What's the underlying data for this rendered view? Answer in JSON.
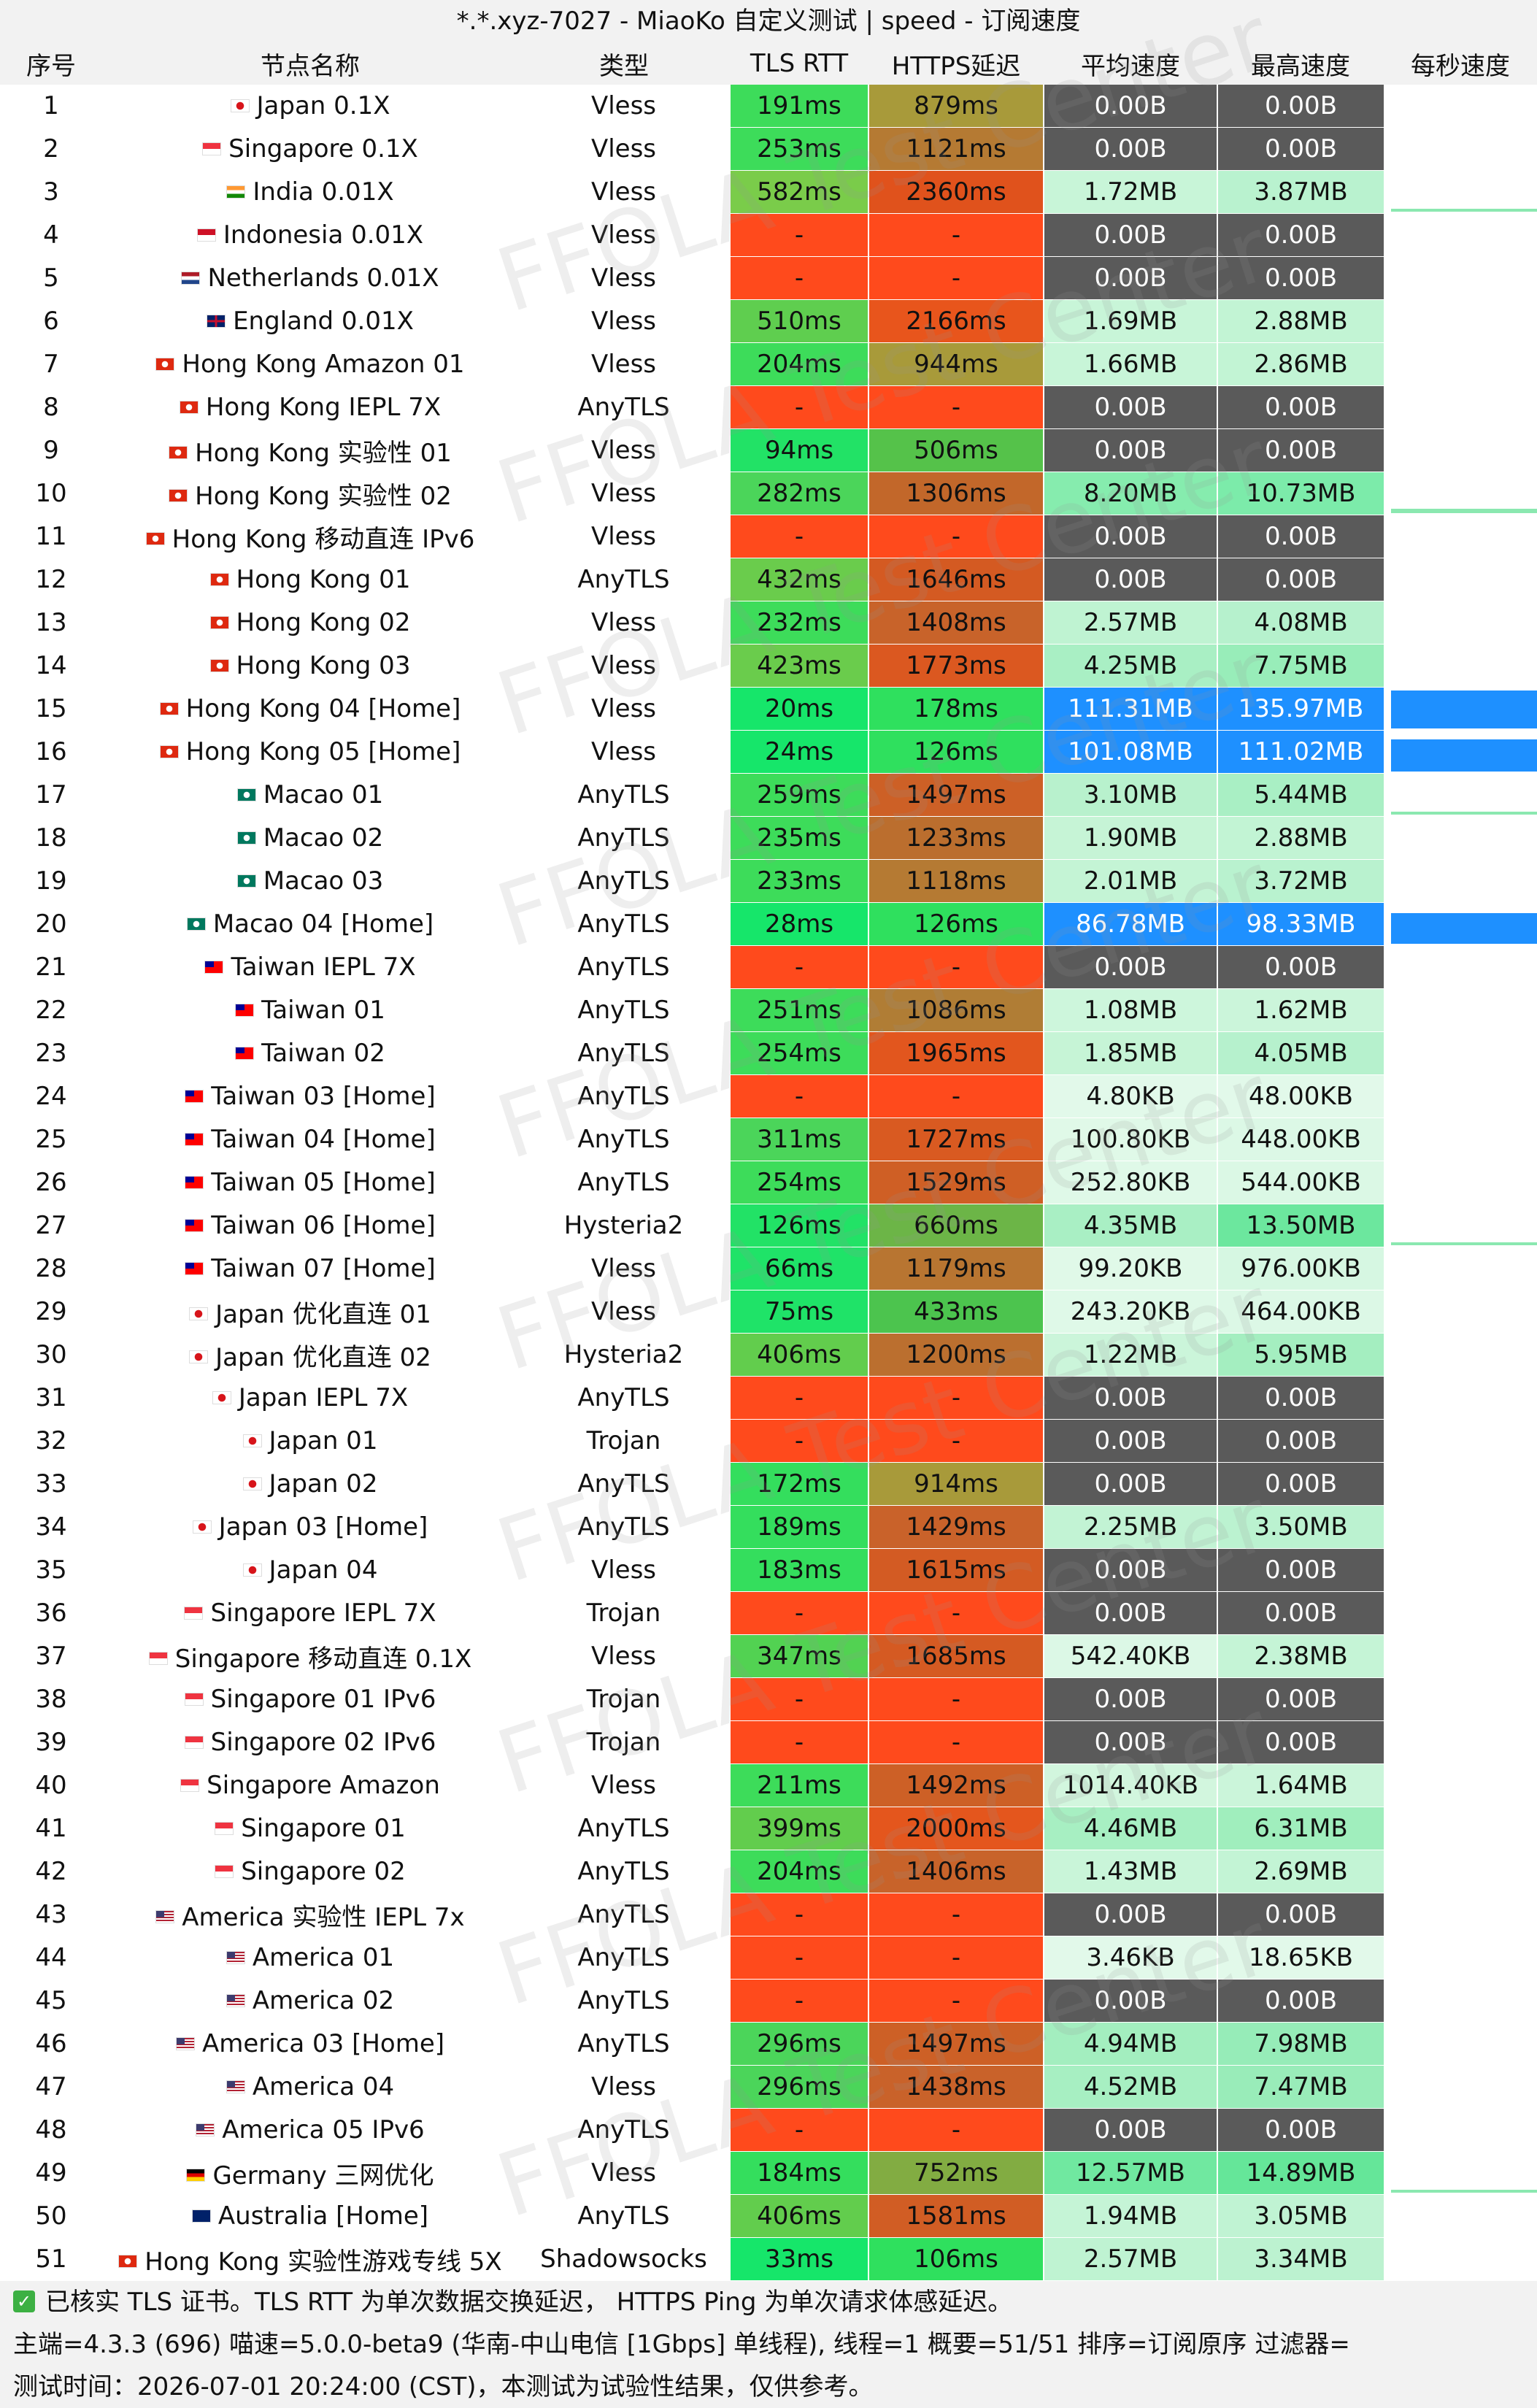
{
  "title": "*.*.xyz-7027 - MiaoKo 自定义测试 | speed - 订阅速度",
  "headers": [
    "序号",
    "节点名称",
    "类型",
    "TLS RTT",
    "HTTPS延迟",
    "平均速度",
    "最高速度",
    "每秒速度"
  ],
  "colors": {
    "red": "#ff4a1c",
    "gray": "#5a5a5a",
    "blue": "#1e90ff",
    "green_strong": "#1fe06a",
    "green_mid": "#4bd55a",
    "green_light": "#c8f5d8",
    "green_lighter": "#a6f0c2",
    "olive": "#a89a3a",
    "orange_brown": "#c26a2a"
  },
  "rows": [
    {
      "idx": "1",
      "flag": "jp",
      "name": "Japan 0.1X",
      "type": "Vless",
      "tls": "191ms",
      "https": "879ms",
      "avg": "0.00B",
      "max": "0.00B",
      "tls_c": "#3ddc5a",
      "https_c": "#a89a3a",
      "avg_c": "#5a5a5a",
      "max_c": "#5a5a5a",
      "spark": 0
    },
    {
      "idx": "2",
      "flag": "sg",
      "name": "Singapore 0.1X",
      "type": "Vless",
      "tls": "253ms",
      "https": "1121ms",
      "avg": "0.00B",
      "max": "0.00B",
      "tls_c": "#3ddc5a",
      "https_c": "#b57a33",
      "avg_c": "#5a5a5a",
      "max_c": "#5a5a5a",
      "spark": 0
    },
    {
      "idx": "3",
      "flag": "in",
      "name": "India 0.01X",
      "type": "Vless",
      "tls": "582ms",
      "https": "2360ms",
      "avg": "1.72MB",
      "max": "3.87MB",
      "tls_c": "#7acc4a",
      "https_c": "#e0521c",
      "avg_c": "#c8f5d8",
      "max_c": "#b9f2cf",
      "spark": 0.06
    },
    {
      "idx": "4",
      "flag": "id",
      "name": "Indonesia 0.01X",
      "type": "Vless",
      "tls": "-",
      "https": "-",
      "avg": "0.00B",
      "max": "0.00B",
      "tls_c": "#ff4a1c",
      "https_c": "#ff4a1c",
      "avg_c": "#5a5a5a",
      "max_c": "#5a5a5a",
      "spark": 0
    },
    {
      "idx": "5",
      "flag": "nl",
      "name": "Netherlands 0.01X",
      "type": "Vless",
      "tls": "-",
      "https": "-",
      "avg": "0.00B",
      "max": "0.00B",
      "tls_c": "#ff4a1c",
      "https_c": "#ff4a1c",
      "avg_c": "#5a5a5a",
      "max_c": "#5a5a5a",
      "spark": 0
    },
    {
      "idx": "6",
      "flag": "gb",
      "name": "England 0.01X",
      "type": "Vless",
      "tls": "510ms",
      "https": "2166ms",
      "avg": "1.69MB",
      "max": "2.88MB",
      "tls_c": "#5fce4f",
      "https_c": "#e8551c",
      "avg_c": "#c8f5d8",
      "max_c": "#c2f4d4",
      "spark": 0
    },
    {
      "idx": "7",
      "flag": "hk",
      "name": "Hong Kong Amazon 01",
      "type": "Vless",
      "tls": "204ms",
      "https": "944ms",
      "avg": "1.66MB",
      "max": "2.86MB",
      "tls_c": "#3ddc5a",
      "https_c": "#a89a3a",
      "avg_c": "#c8f5d8",
      "max_c": "#c2f4d4",
      "spark": 0
    },
    {
      "idx": "8",
      "flag": "hk",
      "name": "Hong Kong IEPL 7X",
      "type": "AnyTLS",
      "tls": "-",
      "https": "-",
      "avg": "0.00B",
      "max": "0.00B",
      "tls_c": "#ff4a1c",
      "https_c": "#ff4a1c",
      "avg_c": "#5a5a5a",
      "max_c": "#5a5a5a",
      "spark": 0
    },
    {
      "idx": "9",
      "flag": "hk",
      "name": "Hong Kong 实验性 01",
      "type": "Vless",
      "tls": "94ms",
      "https": "506ms",
      "avg": "0.00B",
      "max": "0.00B",
      "tls_c": "#22e266",
      "https_c": "#55c24a",
      "avg_c": "#5a5a5a",
      "max_c": "#5a5a5a",
      "spark": 0
    },
    {
      "idx": "10",
      "flag": "hk",
      "name": "Hong Kong 实验性 02",
      "type": "Vless",
      "tls": "282ms",
      "https": "1306ms",
      "avg": "8.20MB",
      "max": "10.73MB",
      "tls_c": "#4bd55a",
      "https_c": "#c2672a",
      "avg_c": "#86ecae",
      "max_c": "#7cebaa",
      "spark": 0.12
    },
    {
      "idx": "11",
      "flag": "hk",
      "name": "Hong Kong 移动直连 IPv6",
      "type": "Vless",
      "tls": "-",
      "https": "-",
      "avg": "0.00B",
      "max": "0.00B",
      "tls_c": "#ff4a1c",
      "https_c": "#ff4a1c",
      "avg_c": "#5a5a5a",
      "max_c": "#5a5a5a",
      "spark": 0
    },
    {
      "idx": "12",
      "flag": "hk",
      "name": "Hong Kong 01",
      "type": "AnyTLS",
      "tls": "432ms",
      "https": "1646ms",
      "avg": "0.00B",
      "max": "0.00B",
      "tls_c": "#6acc4c",
      "https_c": "#d45a22",
      "avg_c": "#5a5a5a",
      "max_c": "#5a5a5a",
      "spark": 0
    },
    {
      "idx": "13",
      "flag": "hk",
      "name": "Hong Kong 02",
      "type": "Vless",
      "tls": "232ms",
      "https": "1408ms",
      "avg": "2.57MB",
      "max": "4.08MB",
      "tls_c": "#3ddc5a",
      "https_c": "#c8632a",
      "avg_c": "#bff3d2",
      "max_c": "#b6f1cd",
      "spark": 0
    },
    {
      "idx": "14",
      "flag": "hk",
      "name": "Hong Kong 03",
      "type": "Vless",
      "tls": "423ms",
      "https": "1773ms",
      "avg": "4.25MB",
      "max": "7.75MB",
      "tls_c": "#6acc4c",
      "https_c": "#db5820",
      "avg_c": "#a9efc4",
      "max_c": "#98edb9",
      "spark": 0
    },
    {
      "idx": "15",
      "flag": "hk",
      "name": "Hong Kong 04 [Home]",
      "type": "Vless",
      "tls": "20ms",
      "https": "178ms",
      "avg": "111.31MB",
      "max": "135.97MB",
      "tls_c": "#16e66a",
      "https_c": "#2fe05e",
      "avg_c": "#1e90ff",
      "max_c": "#1e90ff",
      "spark": 1.0
    },
    {
      "idx": "16",
      "flag": "hk",
      "name": "Hong Kong 05 [Home]",
      "type": "Vless",
      "tls": "24ms",
      "https": "126ms",
      "avg": "101.08MB",
      "max": "111.02MB",
      "tls_c": "#16e66a",
      "https_c": "#2fe05e",
      "avg_c": "#1e90ff",
      "max_c": "#1e90ff",
      "spark": 0.85
    },
    {
      "idx": "17",
      "flag": "mo",
      "name": "Macao 01",
      "type": "AnyTLS",
      "tls": "259ms",
      "https": "1497ms",
      "avg": "3.10MB",
      "max": "5.44MB",
      "tls_c": "#3ddc5a",
      "https_c": "#cd6026",
      "avg_c": "#b8f1cd",
      "max_c": "#a9efc4",
      "spark": 0.03
    },
    {
      "idx": "18",
      "flag": "mo",
      "name": "Macao 02",
      "type": "AnyTLS",
      "tls": "235ms",
      "https": "1233ms",
      "avg": "1.90MB",
      "max": "2.88MB",
      "tls_c": "#3ddc5a",
      "https_c": "#bb6e2e",
      "avg_c": "#c6f4d6",
      "max_c": "#c2f4d4",
      "spark": 0
    },
    {
      "idx": "19",
      "flag": "mo",
      "name": "Macao 03",
      "type": "AnyTLS",
      "tls": "233ms",
      "https": "1118ms",
      "avg": "2.01MB",
      "max": "3.72MB",
      "tls_c": "#3ddc5a",
      "https_c": "#b57a33",
      "avg_c": "#c4f4d5",
      "max_c": "#b9f2cf",
      "spark": 0
    },
    {
      "idx": "20",
      "flag": "mo",
      "name": "Macao 04 [Home]",
      "type": "AnyTLS",
      "tls": "28ms",
      "https": "126ms",
      "avg": "86.78MB",
      "max": "98.33MB",
      "tls_c": "#16e66a",
      "https_c": "#2fe05e",
      "avg_c": "#1e90ff",
      "max_c": "#1e90ff",
      "spark": 0.8
    },
    {
      "idx": "21",
      "flag": "tw",
      "name": "Taiwan IEPL 7X",
      "type": "AnyTLS",
      "tls": "-",
      "https": "-",
      "avg": "0.00B",
      "max": "0.00B",
      "tls_c": "#ff4a1c",
      "https_c": "#ff4a1c",
      "avg_c": "#5a5a5a",
      "max_c": "#5a5a5a",
      "spark": 0
    },
    {
      "idx": "22",
      "flag": "tw",
      "name": "Taiwan 01",
      "type": "AnyTLS",
      "tls": "251ms",
      "https": "1086ms",
      "avg": "1.08MB",
      "max": "1.62MB",
      "tls_c": "#3ddc5a",
      "https_c": "#b07d35",
      "avg_c": "#cdf6dc",
      "max_c": "#cbf5da",
      "spark": 0
    },
    {
      "idx": "23",
      "flag": "tw",
      "name": "Taiwan 02",
      "type": "AnyTLS",
      "tls": "254ms",
      "https": "1965ms",
      "avg": "1.85MB",
      "max": "4.05MB",
      "tls_c": "#3ddc5a",
      "https_c": "#e2561e",
      "avg_c": "#c6f4d6",
      "max_c": "#b6f1cd",
      "spark": 0
    },
    {
      "idx": "24",
      "flag": "tw",
      "name": "Taiwan 03 [Home]",
      "type": "AnyTLS",
      "tls": "-",
      "https": "-",
      "avg": "4.80KB",
      "max": "48.00KB",
      "tls_c": "#ff4a1c",
      "https_c": "#ff4a1c",
      "avg_c": "#e2f9ea",
      "max_c": "#e2f9ea",
      "spark": 0
    },
    {
      "idx": "25",
      "flag": "tw",
      "name": "Taiwan 04 [Home]",
      "type": "AnyTLS",
      "tls": "311ms",
      "https": "1727ms",
      "avg": "100.80KB",
      "max": "448.00KB",
      "tls_c": "#4bd55a",
      "https_c": "#d95a21",
      "avg_c": "#e0f9e8",
      "max_c": "#dcf8e6",
      "spark": 0
    },
    {
      "idx": "26",
      "flag": "tw",
      "name": "Taiwan 05 [Home]",
      "type": "AnyTLS",
      "tls": "254ms",
      "https": "1529ms",
      "avg": "252.80KB",
      "max": "544.00KB",
      "tls_c": "#3ddc5a",
      "https_c": "#cf5f25",
      "avg_c": "#dff9e8",
      "max_c": "#dbf8e5",
      "spark": 0
    },
    {
      "idx": "27",
      "flag": "tw",
      "name": "Taiwan 06 [Home]",
      "type": "Hysteria2",
      "tls": "126ms",
      "https": "660ms",
      "avg": "4.35MB",
      "max": "13.50MB",
      "tls_c": "#22e266",
      "https_c": "#6cb547",
      "avg_c": "#a9efc4",
      "max_c": "#6ce79e",
      "spark": 0.05
    },
    {
      "idx": "28",
      "flag": "tw",
      "name": "Taiwan 07 [Home]",
      "type": "Vless",
      "tls": "66ms",
      "https": "1179ms",
      "avg": "99.20KB",
      "max": "976.00KB",
      "tls_c": "#1fe368",
      "https_c": "#b87531",
      "avg_c": "#e0f9e8",
      "max_c": "#d6f7e2",
      "spark": 0
    },
    {
      "idx": "29",
      "flag": "jp",
      "name": "Japan 优化直连 01",
      "type": "Vless",
      "tls": "75ms",
      "https": "433ms",
      "avg": "243.20KB",
      "max": "464.00KB",
      "tls_c": "#1fe368",
      "https_c": "#4cc44e",
      "avg_c": "#dff9e8",
      "max_c": "#dcf8e6",
      "spark": 0
    },
    {
      "idx": "30",
      "flag": "jp",
      "name": "Japan 优化直连 02",
      "type": "Hysteria2",
      "tls": "406ms",
      "https": "1200ms",
      "avg": "1.22MB",
      "max": "5.95MB",
      "tls_c": "#62cd4d",
      "https_c": "#bb6f2f",
      "avg_c": "#cbf5da",
      "max_c": "#a4eec0",
      "spark": 0
    },
    {
      "idx": "31",
      "flag": "jp",
      "name": "Japan IEPL 7X",
      "type": "AnyTLS",
      "tls": "-",
      "https": "-",
      "avg": "0.00B",
      "max": "0.00B",
      "tls_c": "#ff4a1c",
      "https_c": "#ff4a1c",
      "avg_c": "#5a5a5a",
      "max_c": "#5a5a5a",
      "spark": 0
    },
    {
      "idx": "32",
      "flag": "jp",
      "name": "Japan 01",
      "type": "Trojan",
      "tls": "-",
      "https": "-",
      "avg": "0.00B",
      "max": "0.00B",
      "tls_c": "#ff4a1c",
      "https_c": "#ff4a1c",
      "avg_c": "#5a5a5a",
      "max_c": "#5a5a5a",
      "spark": 0
    },
    {
      "idx": "33",
      "flag": "jp",
      "name": "Japan 02",
      "type": "AnyTLS",
      "tls": "172ms",
      "https": "914ms",
      "avg": "0.00B",
      "max": "0.00B",
      "tls_c": "#34de5d",
      "https_c": "#a89a3a",
      "avg_c": "#5a5a5a",
      "max_c": "#5a5a5a",
      "spark": 0
    },
    {
      "idx": "34",
      "flag": "jp",
      "name": "Japan 03 [Home]",
      "type": "AnyTLS",
      "tls": "189ms",
      "https": "1429ms",
      "avg": "2.25MB",
      "max": "3.50MB",
      "tls_c": "#34de5d",
      "https_c": "#c9622a",
      "avg_c": "#c2f3d4",
      "max_c": "#bbf2d0",
      "spark": 0
    },
    {
      "idx": "35",
      "flag": "jp",
      "name": "Japan 04",
      "type": "Vless",
      "tls": "183ms",
      "https": "1615ms",
      "avg": "0.00B",
      "max": "0.00B",
      "tls_c": "#34de5d",
      "https_c": "#d35b23",
      "avg_c": "#5a5a5a",
      "max_c": "#5a5a5a",
      "spark": 0
    },
    {
      "idx": "36",
      "flag": "sg",
      "name": "Singapore IEPL 7X",
      "type": "Trojan",
      "tls": "-",
      "https": "-",
      "avg": "0.00B",
      "max": "0.00B",
      "tls_c": "#ff4a1c",
      "https_c": "#ff4a1c",
      "avg_c": "#5a5a5a",
      "max_c": "#5a5a5a",
      "spark": 0
    },
    {
      "idx": "37",
      "flag": "sg",
      "name": "Singapore 移动直连 0.1X",
      "type": "Vless",
      "tls": "347ms",
      "https": "1685ms",
      "avg": "542.40KB",
      "max": "2.38MB",
      "tls_c": "#52d252",
      "https_c": "#d55a22",
      "avg_c": "#dcf8e6",
      "max_c": "#c5f4d6",
      "spark": 0
    },
    {
      "idx": "38",
      "flag": "sg",
      "name": "Singapore 01 IPv6",
      "type": "Trojan",
      "tls": "-",
      "https": "-",
      "avg": "0.00B",
      "max": "0.00B",
      "tls_c": "#ff4a1c",
      "https_c": "#ff4a1c",
      "avg_c": "#5a5a5a",
      "max_c": "#5a5a5a",
      "spark": 0
    },
    {
      "idx": "39",
      "flag": "sg",
      "name": "Singapore 02 IPv6",
      "type": "Trojan",
      "tls": "-",
      "https": "-",
      "avg": "0.00B",
      "max": "0.00B",
      "tls_c": "#ff4a1c",
      "https_c": "#ff4a1c",
      "avg_c": "#5a5a5a",
      "max_c": "#5a5a5a",
      "spark": 0
    },
    {
      "idx": "40",
      "flag": "sg",
      "name": "Singapore Amazon",
      "type": "Vless",
      "tls": "211ms",
      "https": "1492ms",
      "avg": "1014.40KB",
      "max": "1.64MB",
      "tls_c": "#3ddc5a",
      "https_c": "#cd6026",
      "avg_c": "#d2f6de",
      "max_c": "#cbf5da",
      "spark": 0
    },
    {
      "idx": "41",
      "flag": "sg",
      "name": "Singapore 01",
      "type": "AnyTLS",
      "tls": "399ms",
      "https": "2000ms",
      "avg": "4.46MB",
      "max": "6.31MB",
      "tls_c": "#62cd4d",
      "https_c": "#e4561d",
      "avg_c": "#a7efc2",
      "max_c": "#a0eebd",
      "spark": 0
    },
    {
      "idx": "42",
      "flag": "sg",
      "name": "Singapore 02",
      "type": "AnyTLS",
      "tls": "204ms",
      "https": "1406ms",
      "avg": "1.43MB",
      "max": "2.69MB",
      "tls_c": "#3ddc5a",
      "https_c": "#c8632a",
      "avg_c": "#c9f5d9",
      "max_c": "#c3f4d5",
      "spark": 0
    },
    {
      "idx": "43",
      "flag": "us",
      "name": "America  实验性 IEPL 7x",
      "type": "AnyTLS",
      "tls": "-",
      "https": "-",
      "avg": "0.00B",
      "max": "0.00B",
      "tls_c": "#ff4a1c",
      "https_c": "#ff4a1c",
      "avg_c": "#5a5a5a",
      "max_c": "#5a5a5a",
      "spark": 0
    },
    {
      "idx": "44",
      "flag": "us",
      "name": "America 01",
      "type": "AnyTLS",
      "tls": "-",
      "https": "-",
      "avg": "3.46KB",
      "max": "18.65KB",
      "tls_c": "#ff4a1c",
      "https_c": "#ff4a1c",
      "avg_c": "#e2f9ea",
      "max_c": "#e2f9ea",
      "spark": 0
    },
    {
      "idx": "45",
      "flag": "us",
      "name": "America 02",
      "type": "AnyTLS",
      "tls": "-",
      "https": "-",
      "avg": "0.00B",
      "max": "0.00B",
      "tls_c": "#ff4a1c",
      "https_c": "#ff4a1c",
      "avg_c": "#5a5a5a",
      "max_c": "#5a5a5a",
      "spark": 0
    },
    {
      "idx": "46",
      "flag": "us",
      "name": "America 03 [Home]",
      "type": "AnyTLS",
      "tls": "296ms",
      "https": "1497ms",
      "avg": "4.94MB",
      "max": "7.98MB",
      "tls_c": "#4bd55a",
      "https_c": "#cd6026",
      "avg_c": "#a3eebf",
      "max_c": "#96ecb8",
      "spark": 0
    },
    {
      "idx": "47",
      "flag": "us",
      "name": "America 04",
      "type": "Vless",
      "tls": "296ms",
      "https": "1438ms",
      "avg": "4.52MB",
      "max": "7.47MB",
      "tls_c": "#4bd55a",
      "https_c": "#c9622a",
      "avg_c": "#a7efc2",
      "max_c": "#99ecb9",
      "spark": 0
    },
    {
      "idx": "48",
      "flag": "us",
      "name": "America 05 IPv6",
      "type": "AnyTLS",
      "tls": "-",
      "https": "-",
      "avg": "0.00B",
      "max": "0.00B",
      "tls_c": "#ff4a1c",
      "https_c": "#ff4a1c",
      "avg_c": "#5a5a5a",
      "max_c": "#5a5a5a",
      "spark": 0
    },
    {
      "idx": "49",
      "flag": "de",
      "name": "Germany 三网优化",
      "type": "Vless",
      "tls": "184ms",
      "https": "752ms",
      "avg": "12.57MB",
      "max": "14.89MB",
      "tls_c": "#34de5d",
      "https_c": "#82ac42",
      "avg_c": "#70e8a0",
      "max_c": "#65e699",
      "spark": 0.08
    },
    {
      "idx": "50",
      "flag": "au",
      "name": "Australia [Home]",
      "type": "AnyTLS",
      "tls": "406ms",
      "https": "1581ms",
      "avg": "1.94MB",
      "max": "3.05MB",
      "tls_c": "#62cd4d",
      "https_c": "#d15d24",
      "avg_c": "#c5f4d6",
      "max_c": "#c0f3d3",
      "spark": 0
    },
    {
      "idx": "51",
      "flag": "hk",
      "name": "Hong Kong 实验性游戏专线 5X",
      "type": "Shadowsocks",
      "tls": "33ms",
      "https": "106ms",
      "avg": "2.57MB",
      "max": "3.34MB",
      "tls_c": "#16e66a",
      "https_c": "#2fe05e",
      "avg_c": "#bff3d2",
      "max_c": "#bcf2d0",
      "spark": 0
    }
  ],
  "footer": {
    "line1": "已核实 TLS 证书。TLS RTT 为单次数据交换延迟， HTTPS Ping 为单次请求体感延迟。",
    "line2": "主端=4.3.3 (696) 喵速=5.0.0-beta9 (华南-中山电信 [1Gbps] 单线程), 线程=1 概要=51/51 排序=订阅原序 过滤器=",
    "line3": "测试时间：2026-07-01 20:24:00 (CST)，本测试为试验性结果，仅供参考。"
  },
  "watermark": "FFOLA Test Center"
}
